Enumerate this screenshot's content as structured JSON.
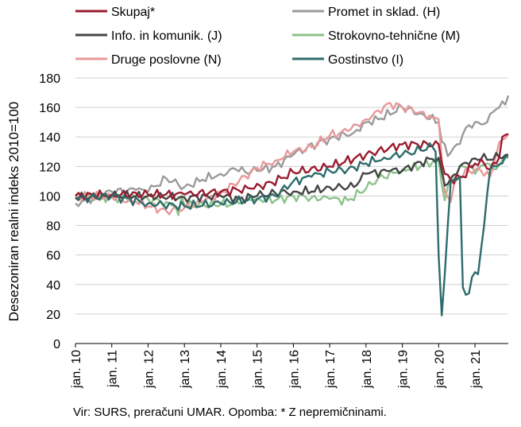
{
  "chart_data": {
    "type": "line",
    "ylabel": "Desezoniran realni indeks 2010=100",
    "ylim": [
      0,
      180
    ],
    "yticks": [
      0,
      20,
      40,
      60,
      80,
      100,
      120,
      140,
      160,
      180
    ],
    "xlabels": [
      "jan. 10",
      "jan. 11",
      "jan. 12",
      "jan. 13",
      "jan. 14",
      "jan. 15",
      "jan. 16",
      "jan. 17",
      "jan. 18",
      "jan. 19",
      "jan. 20",
      "jan. 21"
    ],
    "x_start": "2010-01",
    "x_end": "2021-12",
    "grid": "horizontal",
    "legend_placement": "top",
    "series": [
      {
        "name": "Skupaj*",
        "color": "#9b1b30",
        "knots": [
          [
            0,
            100
          ],
          [
            12,
            101
          ],
          [
            24,
            101
          ],
          [
            36,
            101
          ],
          [
            48,
            103
          ],
          [
            58,
            105
          ],
          [
            65,
            109
          ],
          [
            72,
            116
          ],
          [
            84,
            120
          ],
          [
            96,
            128
          ],
          [
            108,
            135
          ],
          [
            120,
            135
          ],
          [
            122,
            115
          ],
          [
            124,
            111
          ],
          [
            128,
            113
          ],
          [
            132,
            122
          ],
          [
            135,
            122
          ],
          [
            137,
            118
          ],
          [
            140,
            126
          ],
          [
            141,
            140
          ],
          [
            143,
            142
          ]
        ]
      },
      {
        "name": "Promet in sklad. (H)",
        "color": "#9a9a9a",
        "knots": [
          [
            0,
            95
          ],
          [
            12,
            103
          ],
          [
            20,
            104
          ],
          [
            24,
            103
          ],
          [
            30,
            112
          ],
          [
            36,
            106
          ],
          [
            42,
            111
          ],
          [
            48,
            115
          ],
          [
            53,
            118
          ],
          [
            58,
            116
          ],
          [
            60,
            117
          ],
          [
            66,
            120
          ],
          [
            72,
            128
          ],
          [
            80,
            136
          ],
          [
            84,
            139
          ],
          [
            92,
            143
          ],
          [
            96,
            150
          ],
          [
            100,
            152
          ],
          [
            108,
            160
          ],
          [
            114,
            156
          ],
          [
            120,
            150
          ],
          [
            121,
            137
          ],
          [
            123,
            127
          ],
          [
            126,
            135
          ],
          [
            130,
            148
          ],
          [
            133,
            150
          ],
          [
            136,
            150
          ],
          [
            138,
            157
          ],
          [
            140,
            160
          ],
          [
            143,
            168
          ]
        ]
      },
      {
        "name": "Info. in komunik. (J)",
        "color": "#444444",
        "knots": [
          [
            0,
            99
          ],
          [
            12,
            100
          ],
          [
            24,
            100
          ],
          [
            36,
            99
          ],
          [
            48,
            100
          ],
          [
            54,
            98
          ],
          [
            60,
            100
          ],
          [
            66,
            102
          ],
          [
            72,
            103
          ],
          [
            78,
            103
          ],
          [
            84,
            106
          ],
          [
            92,
            106
          ],
          [
            96,
            115
          ],
          [
            104,
            117
          ],
          [
            108,
            117
          ],
          [
            114,
            123
          ],
          [
            120,
            126
          ],
          [
            122,
            107
          ],
          [
            124,
            112
          ],
          [
            128,
            122
          ],
          [
            131,
            125
          ],
          [
            134,
            125
          ],
          [
            140,
            126
          ],
          [
            143,
            128
          ]
        ]
      },
      {
        "name": "Strokovno-tehnične (M)",
        "color": "#8cc28a",
        "knots": [
          [
            0,
            100
          ],
          [
            12,
            99
          ],
          [
            24,
            98
          ],
          [
            30,
            96
          ],
          [
            33,
            93
          ],
          [
            34,
            87
          ],
          [
            35,
            100
          ],
          [
            36,
            94
          ],
          [
            48,
            94
          ],
          [
            54,
            95
          ],
          [
            58,
            97
          ],
          [
            60,
            98
          ],
          [
            66,
            97
          ],
          [
            72,
            100
          ],
          [
            78,
            99
          ],
          [
            84,
            98
          ],
          [
            90,
            97
          ],
          [
            96,
            105
          ],
          [
            100,
            112
          ],
          [
            106,
            116
          ],
          [
            108,
            118
          ],
          [
            114,
            120
          ],
          [
            118,
            123
          ],
          [
            120,
            124
          ],
          [
            121,
            108
          ],
          [
            122,
            97
          ],
          [
            124,
            110
          ],
          [
            128,
            120
          ],
          [
            130,
            119
          ],
          [
            133,
            118
          ],
          [
            136,
            122
          ],
          [
            138,
            118
          ],
          [
            140,
            121
          ],
          [
            143,
            126
          ]
        ]
      },
      {
        "name": "Druge poslovne (N)",
        "color": "#e8989a",
        "knots": [
          [
            0,
            100
          ],
          [
            12,
            99
          ],
          [
            20,
            96
          ],
          [
            24,
            93
          ],
          [
            30,
            90
          ],
          [
            36,
            92
          ],
          [
            42,
            96
          ],
          [
            48,
            102
          ],
          [
            54,
            110
          ],
          [
            60,
            119
          ],
          [
            66,
            124
          ],
          [
            72,
            130
          ],
          [
            78,
            133
          ],
          [
            84,
            141
          ],
          [
            90,
            144
          ],
          [
            96,
            152
          ],
          [
            100,
            158
          ],
          [
            104,
            163
          ],
          [
            108,
            160
          ],
          [
            114,
            157
          ],
          [
            118,
            153
          ],
          [
            120,
            152
          ],
          [
            121,
            125
          ],
          [
            122,
            103
          ],
          [
            124,
            96
          ],
          [
            126,
            112
          ],
          [
            130,
            117
          ],
          [
            134,
            117
          ],
          [
            137,
            113
          ],
          [
            139,
            128
          ],
          [
            141,
            138
          ],
          [
            143,
            142
          ]
        ]
      },
      {
        "name": "Gostinstvo (I)",
        "color": "#2e6b6b",
        "knots": [
          [
            0,
            98
          ],
          [
            12,
            100
          ],
          [
            24,
            95
          ],
          [
            36,
            93
          ],
          [
            48,
            95
          ],
          [
            60,
            98
          ],
          [
            66,
            100
          ],
          [
            72,
            110
          ],
          [
            78,
            113
          ],
          [
            84,
            117
          ],
          [
            90,
            118
          ],
          [
            96,
            122
          ],
          [
            102,
            126
          ],
          [
            108,
            128
          ],
          [
            114,
            131
          ],
          [
            118,
            133
          ],
          [
            119,
            130
          ],
          [
            120,
            60
          ],
          [
            121,
            19
          ],
          [
            123,
            80
          ],
          [
            124,
            110
          ],
          [
            126,
            111
          ],
          [
            127,
            113
          ],
          [
            128,
            38
          ],
          [
            129,
            33
          ],
          [
            130,
            34
          ],
          [
            131,
            45
          ],
          [
            133,
            47
          ],
          [
            135,
            80
          ],
          [
            137,
            118
          ],
          [
            139,
            120
          ],
          [
            141,
            122
          ],
          [
            143,
            127
          ]
        ]
      }
    ]
  },
  "footer": {
    "source": "Vir: SURS, preračuni UMAR. Opomba: * Z nepremičninami."
  }
}
